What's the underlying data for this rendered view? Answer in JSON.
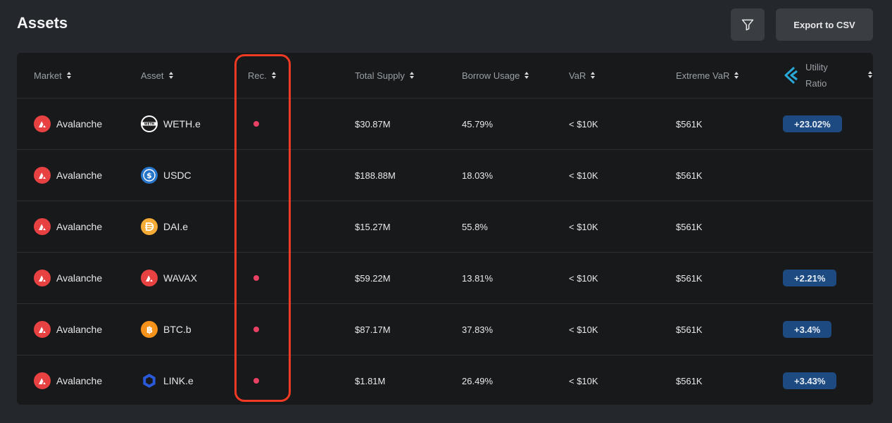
{
  "header": {
    "title": "Assets",
    "filter_icon": "filter-icon",
    "export_label": "Export to CSV"
  },
  "columns": {
    "market": "Market",
    "asset": "Asset",
    "rec": "Rec.",
    "total_supply": "Total Supply",
    "borrow_usage": "Borrow Usage",
    "var": "VaR",
    "extreme_var": "Extreme VaR",
    "utility_ratio_1": "Utility",
    "utility_ratio_2": "Ratio"
  },
  "colors": {
    "recommendation_dot": "#e84163",
    "badge_bg": "#1d4a80",
    "highlight_border": "#f03a24"
  },
  "rows": [
    {
      "market": "Avalanche",
      "market_icon": "avalanche-icon",
      "asset": "WETH.e",
      "asset_icon": "weth-icon",
      "rec": true,
      "total_supply": "$30.87M",
      "borrow_usage": "45.79%",
      "var": "< $10K",
      "extreme_var": "$561K",
      "utility_ratio": "+23.02%"
    },
    {
      "market": "Avalanche",
      "market_icon": "avalanche-icon",
      "asset": "USDC",
      "asset_icon": "usdc-icon",
      "rec": false,
      "total_supply": "$188.88M",
      "borrow_usage": "18.03%",
      "var": "< $10K",
      "extreme_var": "$561K",
      "utility_ratio": ""
    },
    {
      "market": "Avalanche",
      "market_icon": "avalanche-icon",
      "asset": "DAI.e",
      "asset_icon": "dai-icon",
      "rec": false,
      "total_supply": "$15.27M",
      "borrow_usage": "55.8%",
      "var": "< $10K",
      "extreme_var": "$561K",
      "utility_ratio": ""
    },
    {
      "market": "Avalanche",
      "market_icon": "avalanche-icon",
      "asset": "WAVAX",
      "asset_icon": "wavax-icon",
      "rec": true,
      "total_supply": "$59.22M",
      "borrow_usage": "13.81%",
      "var": "< $10K",
      "extreme_var": "$561K",
      "utility_ratio": "+2.21%"
    },
    {
      "market": "Avalanche",
      "market_icon": "avalanche-icon",
      "asset": "BTC.b",
      "asset_icon": "btc-icon",
      "rec": true,
      "total_supply": "$87.17M",
      "borrow_usage": "37.83%",
      "var": "< $10K",
      "extreme_var": "$561K",
      "utility_ratio": "+3.4%"
    },
    {
      "market": "Avalanche",
      "market_icon": "avalanche-icon",
      "asset": "LINK.e",
      "asset_icon": "link-icon",
      "rec": true,
      "total_supply": "$1.81M",
      "borrow_usage": "26.49%",
      "var": "< $10K",
      "extreme_var": "$561K",
      "utility_ratio": "+3.43%"
    }
  ]
}
